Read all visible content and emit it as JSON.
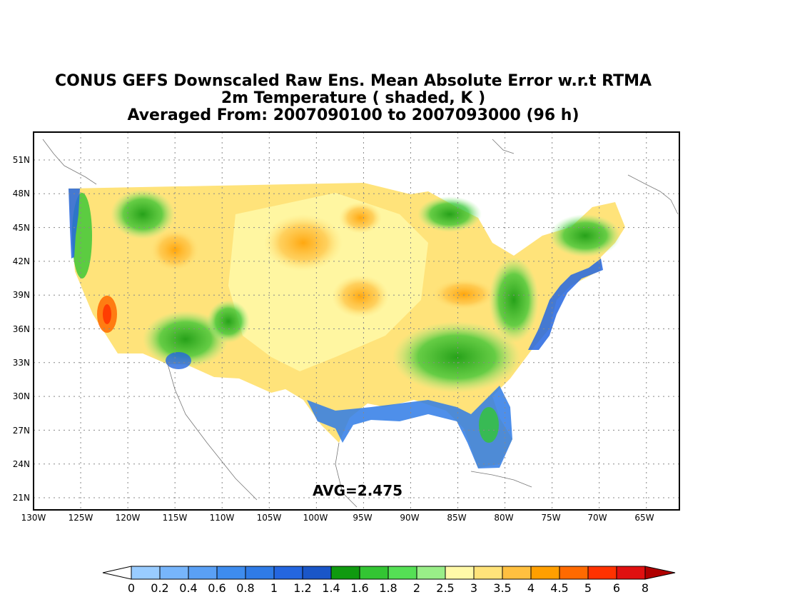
{
  "title": {
    "line1": "CONUS GEFS Downscaled Raw Ens. Mean Absolute Error w.r.t RTMA",
    "line2": "2m Temperature ( shaded, K )",
    "line3": "Averaged From: 2007090100 to 2007093000 (96 h)"
  },
  "map": {
    "lat_labels": [
      "51N",
      "48N",
      "45N",
      "42N",
      "39N",
      "36N",
      "33N",
      "30N",
      "27N",
      "24N",
      "21N"
    ],
    "lon_labels": [
      "130W",
      "125W",
      "120W",
      "115W",
      "110W",
      "105W",
      "100W",
      "95W",
      "90W",
      "85W",
      "80W",
      "75W",
      "70W",
      "65W"
    ],
    "avg_text": "AVG=2.475",
    "region": "CONUS",
    "field": "2m Temperature MAE",
    "units": "K"
  },
  "colorbar": {
    "labels": [
      "0",
      "0.2",
      "0.4",
      "0.6",
      "0.8",
      "1",
      "1.2",
      "1.4",
      "1.6",
      "1.8",
      "2",
      "2.5",
      "3",
      "3.5",
      "4",
      "4.5",
      "5",
      "6",
      "8"
    ],
    "colors": [
      "#99ccff",
      "#77b5fb",
      "#5aa0f5",
      "#3e8cee",
      "#2f7be6",
      "#2466e0",
      "#1a56c8",
      "#0f9a0f",
      "#33c533",
      "#55e055",
      "#99ee88",
      "#fff9a8",
      "#ffe37a",
      "#ffc040",
      "#ff9f00",
      "#ff6a00",
      "#ff3200",
      "#e01010"
    ],
    "under_color": "#ffffff",
    "over_color": "#b00000"
  }
}
